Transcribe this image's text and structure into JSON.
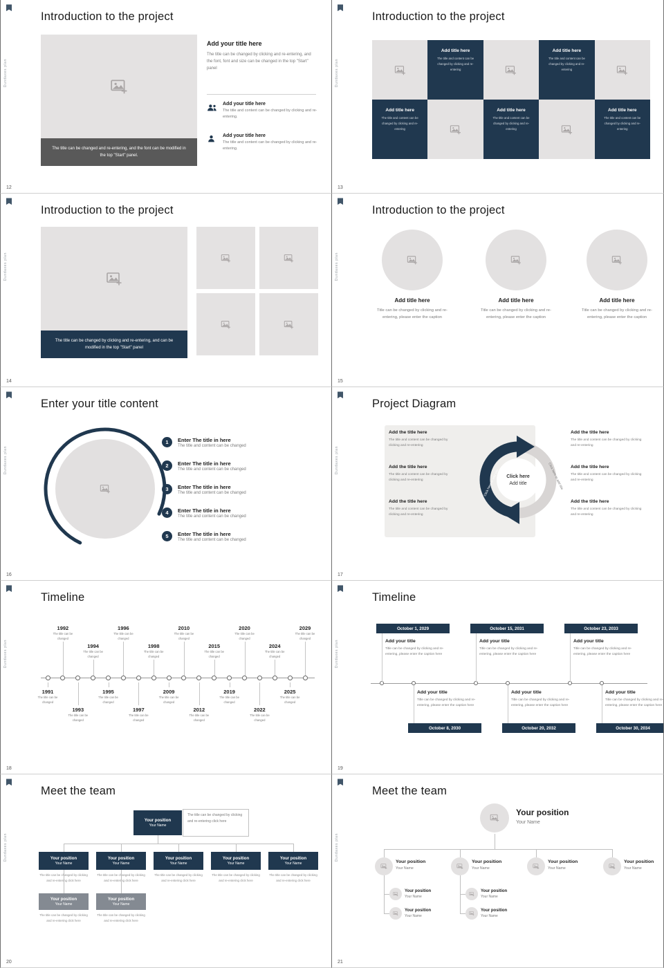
{
  "template": {
    "accent": "#20384f",
    "gray_fill": "#e4e2e2",
    "dark_bar": "#595959",
    "vertical_text": "Dundaxes plan"
  },
  "slides": [
    {
      "page": "12",
      "title": "Introduction to the project",
      "type": "intro-image-left",
      "caption_bar": "The title can be changed and re-entering, and the font can be modified in the top \"Start\" panel.",
      "heading": "Add your title here",
      "paragraph": "The title can be changed by clicking and re-entering, and the font, font and size can be changed in the top \"Start\" panel",
      "items": [
        {
          "icon": "people-icon",
          "title": "Add your title here",
          "text": "The title and content can be changed by clicking and re-entering."
        },
        {
          "icon": "person-icon",
          "title": "Add your title here",
          "text": "The title and content can be changed by clicking and re-entering."
        }
      ]
    },
    {
      "page": "13",
      "title": "Introduction to the project",
      "type": "checkerboard",
      "cell_title": "Add title here",
      "cell_text": "The title and content can be changed by clicking and re-entering",
      "pattern": [
        "image",
        "title",
        "image",
        "title",
        "image",
        "title",
        "image",
        "title",
        "image",
        "title"
      ]
    },
    {
      "page": "14",
      "title": "Introduction to the project",
      "type": "image-grid",
      "caption_bar": "The title can be changed by clicking and re-entering, and can be modified in the top \"Start\" panel"
    },
    {
      "page": "15",
      "title": "Introduction to the project",
      "type": "three-circles",
      "item_title": "Add title here",
      "item_text": "Title can be changed by clicking and re-entering, please enter the caption",
      "count": 3
    },
    {
      "page": "16",
      "title": "Enter your title content",
      "type": "numbered-list",
      "item_title": "Enter The title in here",
      "item_text": "The title and content can be changed",
      "numbers": [
        "1",
        "2",
        "3",
        "4",
        "5"
      ]
    },
    {
      "page": "17",
      "title": "Project Diagram",
      "type": "cycle-diagram",
      "center_top": "Click here",
      "center_bottom": "Add title",
      "arc_label": "Click here to add title",
      "item_title": "Add the title here",
      "item_text": "The title and content can be changed by clicking and re-entering",
      "left_count": 3,
      "right_count": 3
    },
    {
      "page": "18",
      "title": "Timeline",
      "type": "timeline-years",
      "caption": "The title can be changed",
      "events": [
        {
          "year": "1991",
          "pos": "bm"
        },
        {
          "year": "1992",
          "pos": "th"
        },
        {
          "year": "1993",
          "pos": "bl"
        },
        {
          "year": "1994",
          "pos": "tm"
        },
        {
          "year": "1995",
          "pos": "bm"
        },
        {
          "year": "1996",
          "pos": "th"
        },
        {
          "year": "1997",
          "pos": "bl"
        },
        {
          "year": "1998",
          "pos": "tm"
        },
        {
          "year": "2009",
          "pos": "bm"
        },
        {
          "year": "2010",
          "pos": "th"
        },
        {
          "year": "2012",
          "pos": "bl"
        },
        {
          "year": "2015",
          "pos": "tm"
        },
        {
          "year": "2019",
          "pos": "bm"
        },
        {
          "year": "2020",
          "pos": "th"
        },
        {
          "year": "2022",
          "pos": "bl"
        },
        {
          "year": "2024",
          "pos": "tm"
        },
        {
          "year": "2025",
          "pos": "bm"
        },
        {
          "year": "2029",
          "pos": "th"
        }
      ]
    },
    {
      "page": "19",
      "title": "Timeline",
      "type": "timeline-dates",
      "item_title": "Add your title",
      "item_text": "Title can be changed by clicking and re-entering, please enter the caption here",
      "top_dates": [
        "October 1, 2029",
        "October 15, 2031",
        "October 23, 2033"
      ],
      "bottom_dates": [
        "October 8, 2030",
        "October 20, 2032",
        "October 30, 2034"
      ]
    },
    {
      "page": "20",
      "title": "Meet the team",
      "type": "org-chart",
      "box_title": "Your position",
      "box_name": "Your Name",
      "note": "The title can be changed by clicking and re-entering click here",
      "caption": "The title can be changed by clicking and re-entering click here",
      "level2_count": 5,
      "level3_count": 2
    },
    {
      "page": "21",
      "title": "Meet the team",
      "type": "team-tree",
      "root_title": "Your position",
      "root_name": "Your Name",
      "branch_title": "Your position",
      "branch_name": "Your Name",
      "child_title": "Your position",
      "child_name": "Your Name",
      "branches": [
        {
          "children": 2
        },
        {
          "children": 2
        },
        {
          "children": 0
        },
        {
          "children": 0
        }
      ]
    }
  ]
}
